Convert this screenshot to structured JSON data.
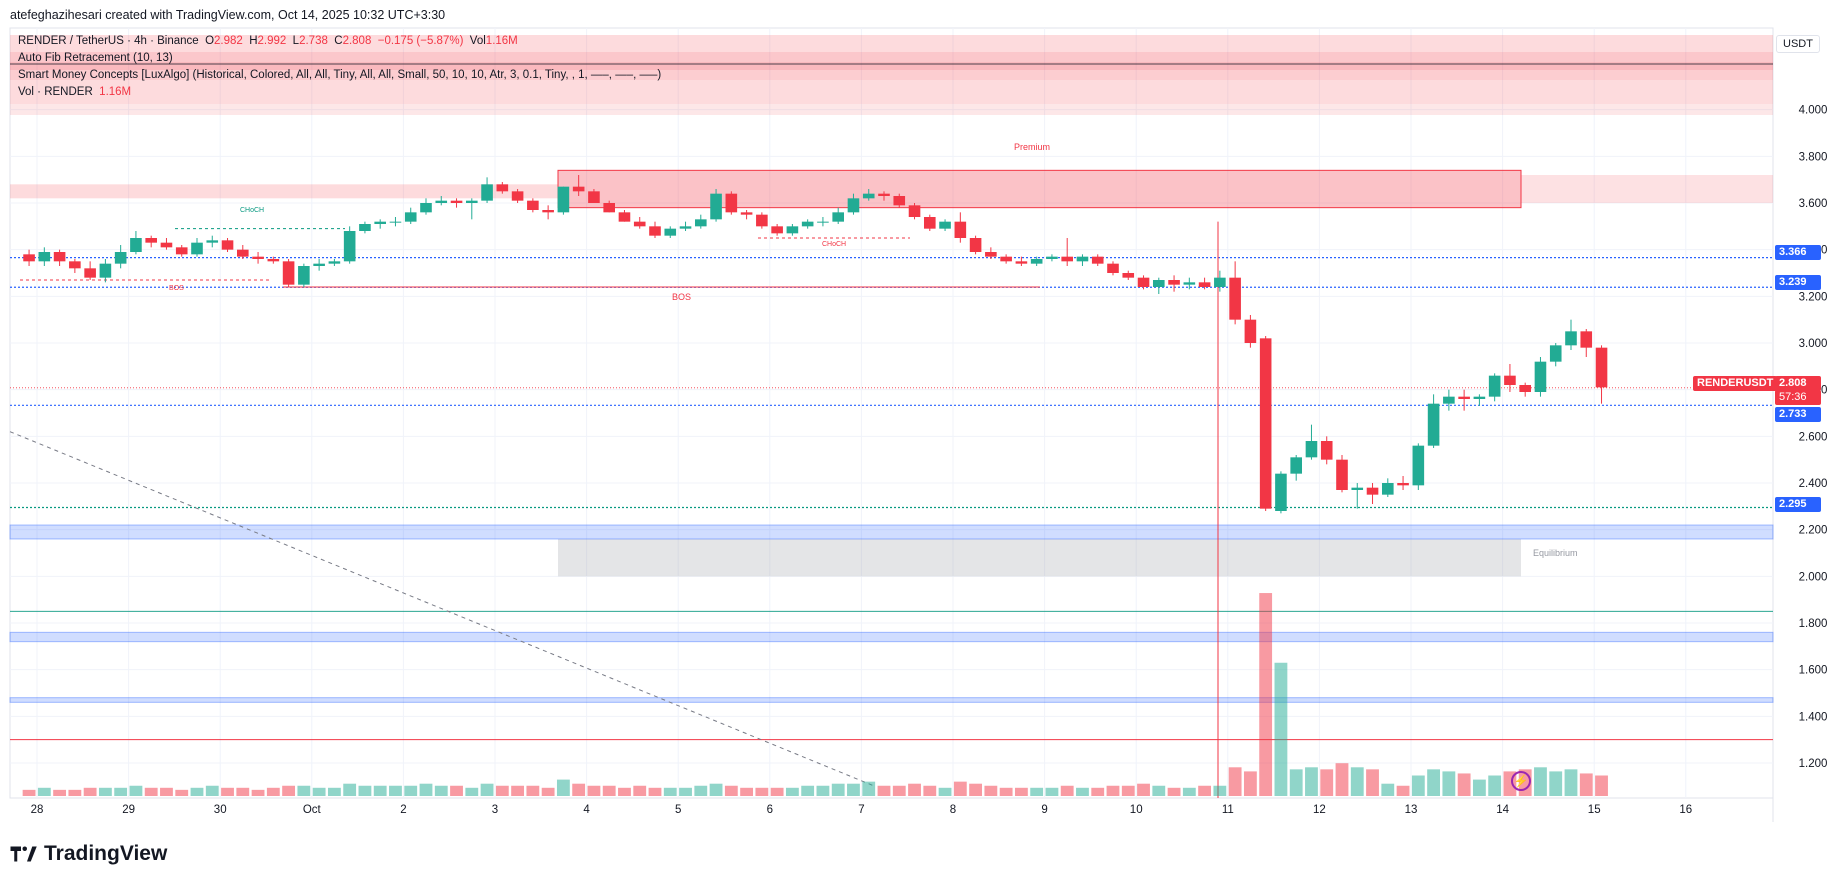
{
  "header": {
    "caption": "atefeghazihesari created with TradingView.com, Oct 14, 2025 10:32 UTC+3:30"
  },
  "legend": {
    "symbol_line": "RENDER / TetherUS · 4h · Binance",
    "o_label": "O",
    "o_value": "2.982",
    "h_label": "H",
    "h_value": "2.992",
    "l_label": "L",
    "l_value": "2.738",
    "c_label": "C",
    "c_value": "2.808",
    "change": "−0.175 (−5.87%)",
    "vol_label": "Vol",
    "vol_value": "1.16M",
    "fib": "Auto Fib Retracement (10, 13)",
    "smc": "Smart Money Concepts [LuxAlgo] (Historical, Colored, All, All, Tiny, All, All, Small, 50, 10, 10, Atr, 3, 0.1, Tiny, , 1, —–, —–, —–)",
    "vol_line_label": "Vol · RENDER",
    "vol_line_value": "1.16M"
  },
  "currency": "USDT",
  "price_tags": {
    "symbol": "RENDERUSDT",
    "last": "2.808",
    "countdown": "57:36",
    "l1": "3.366",
    "l2": "3.239",
    "l3": "2.733",
    "l4": "2.295"
  },
  "zones": {
    "premium": "Premium",
    "equilibrium": "Equilibrium",
    "bos1": "BOS",
    "bos2": "BOS",
    "choch1": "CHoCH",
    "choch2": "CHoCH"
  },
  "brand": "TradingView",
  "colors": {
    "up": "#22ab94",
    "down": "#f23645",
    "blue": "#2962ff",
    "green": "#089981"
  },
  "chart_data": {
    "type": "candlestick",
    "title": "RENDER / TetherUS · 4h · Binance",
    "ylim": [
      1.05,
      4.35
    ],
    "y_ticks": [
      "4.000",
      "3.800",
      "3.600",
      "3.400",
      "3.200",
      "3.000",
      "2.800",
      "2.600",
      "2.400",
      "2.200",
      "2.000",
      "1.800",
      "1.600",
      "1.400",
      "1.200"
    ],
    "y_tick_values": [
      4.0,
      3.8,
      3.6,
      3.4,
      3.2,
      3.0,
      2.8,
      2.6,
      2.4,
      2.2,
      2.0,
      1.8,
      1.6,
      1.4,
      1.2
    ],
    "x_ticks": [
      "28",
      "29",
      "30",
      "Oct",
      "2",
      "3",
      "4",
      "5",
      "6",
      "7",
      "8",
      "9",
      "10",
      "11",
      "12",
      "13",
      "14",
      "15",
      "16"
    ],
    "x_tick_days": [
      0,
      1,
      2,
      3,
      4,
      5,
      6,
      7,
      8,
      9,
      10,
      11,
      12,
      13,
      14,
      15,
      16,
      17,
      18
    ],
    "candles_per_day": 6,
    "candles": [
      [
        3.38,
        3.4,
        3.33,
        3.35
      ],
      [
        3.35,
        3.41,
        3.33,
        3.39
      ],
      [
        3.39,
        3.4,
        3.33,
        3.35
      ],
      [
        3.35,
        3.36,
        3.3,
        3.32
      ],
      [
        3.32,
        3.35,
        3.27,
        3.28
      ],
      [
        3.28,
        3.36,
        3.26,
        3.34
      ],
      [
        3.34,
        3.42,
        3.32,
        3.39
      ],
      [
        3.39,
        3.48,
        3.38,
        3.45
      ],
      [
        3.45,
        3.46,
        3.41,
        3.43
      ],
      [
        3.43,
        3.45,
        3.4,
        3.41
      ],
      [
        3.41,
        3.42,
        3.37,
        3.38
      ],
      [
        3.38,
        3.45,
        3.37,
        3.43
      ],
      [
        3.43,
        3.46,
        3.41,
        3.44
      ],
      [
        3.44,
        3.45,
        3.39,
        3.4
      ],
      [
        3.4,
        3.42,
        3.36,
        3.37
      ],
      [
        3.37,
        3.39,
        3.34,
        3.36
      ],
      [
        3.36,
        3.37,
        3.34,
        3.35
      ],
      [
        3.35,
        3.36,
        3.24,
        3.25
      ],
      [
        3.25,
        3.34,
        3.24,
        3.33
      ],
      [
        3.33,
        3.36,
        3.31,
        3.34
      ],
      [
        3.34,
        3.36,
        3.33,
        3.35
      ],
      [
        3.35,
        3.5,
        3.34,
        3.48
      ],
      [
        3.48,
        3.52,
        3.47,
        3.51
      ],
      [
        3.51,
        3.53,
        3.49,
        3.52
      ],
      [
        3.52,
        3.54,
        3.5,
        3.52
      ],
      [
        3.52,
        3.58,
        3.51,
        3.56
      ],
      [
        3.56,
        3.62,
        3.55,
        3.6
      ],
      [
        3.6,
        3.63,
        3.59,
        3.61
      ],
      [
        3.61,
        3.62,
        3.58,
        3.6
      ],
      [
        3.6,
        3.62,
        3.53,
        3.61
      ],
      [
        3.61,
        3.71,
        3.6,
        3.68
      ],
      [
        3.68,
        3.69,
        3.64,
        3.65
      ],
      [
        3.65,
        3.66,
        3.6,
        3.61
      ],
      [
        3.61,
        3.62,
        3.56,
        3.57
      ],
      [
        3.57,
        3.59,
        3.53,
        3.56
      ],
      [
        3.56,
        3.67,
        3.55,
        3.67
      ],
      [
        3.67,
        3.72,
        3.63,
        3.65
      ],
      [
        3.65,
        3.66,
        3.6,
        3.6
      ],
      [
        3.6,
        3.61,
        3.56,
        3.56
      ],
      [
        3.56,
        3.57,
        3.52,
        3.52
      ],
      [
        3.52,
        3.54,
        3.49,
        3.5
      ],
      [
        3.5,
        3.52,
        3.45,
        3.46
      ],
      [
        3.46,
        3.5,
        3.45,
        3.49
      ],
      [
        3.49,
        3.52,
        3.48,
        3.5
      ],
      [
        3.5,
        3.55,
        3.49,
        3.53
      ],
      [
        3.53,
        3.66,
        3.52,
        3.64
      ],
      [
        3.64,
        3.65,
        3.55,
        3.56
      ],
      [
        3.56,
        3.57,
        3.53,
        3.55
      ],
      [
        3.55,
        3.56,
        3.49,
        3.5
      ],
      [
        3.5,
        3.51,
        3.46,
        3.47
      ],
      [
        3.47,
        3.51,
        3.46,
        3.5
      ],
      [
        3.5,
        3.53,
        3.49,
        3.52
      ],
      [
        3.52,
        3.54,
        3.5,
        3.52
      ],
      [
        3.52,
        3.58,
        3.51,
        3.56
      ],
      [
        3.56,
        3.64,
        3.55,
        3.62
      ],
      [
        3.62,
        3.66,
        3.61,
        3.64
      ],
      [
        3.64,
        3.65,
        3.61,
        3.63
      ],
      [
        3.63,
        3.64,
        3.58,
        3.59
      ],
      [
        3.59,
        3.6,
        3.53,
        3.54
      ],
      [
        3.54,
        3.55,
        3.48,
        3.49
      ],
      [
        3.49,
        3.53,
        3.48,
        3.52
      ],
      [
        3.52,
        3.56,
        3.43,
        3.45
      ],
      [
        3.45,
        3.46,
        3.38,
        3.39
      ],
      [
        3.39,
        3.41,
        3.36,
        3.37
      ],
      [
        3.37,
        3.38,
        3.34,
        3.35
      ],
      [
        3.35,
        3.37,
        3.33,
        3.34
      ],
      [
        3.34,
        3.37,
        3.33,
        3.36
      ],
      [
        3.36,
        3.38,
        3.35,
        3.37
      ],
      [
        3.37,
        3.45,
        3.33,
        3.35
      ],
      [
        3.35,
        3.38,
        3.33,
        3.37
      ],
      [
        3.37,
        3.38,
        3.33,
        3.34
      ],
      [
        3.34,
        3.35,
        3.29,
        3.3
      ],
      [
        3.3,
        3.31,
        3.27,
        3.28
      ],
      [
        3.28,
        3.29,
        3.23,
        3.24
      ],
      [
        3.24,
        3.28,
        3.21,
        3.27
      ],
      [
        3.27,
        3.29,
        3.22,
        3.25
      ],
      [
        3.25,
        3.28,
        3.23,
        3.26
      ],
      [
        3.26,
        3.28,
        3.23,
        3.24
      ],
      [
        3.24,
        3.31,
        3.22,
        3.28
      ],
      [
        3.28,
        3.35,
        3.08,
        3.1
      ],
      [
        3.1,
        3.12,
        2.98,
        3.0
      ],
      [
        3.02,
        3.03,
        2.28,
        2.29
      ],
      [
        2.28,
        2.45,
        2.27,
        2.44
      ],
      [
        2.44,
        2.52,
        2.41,
        2.51
      ],
      [
        2.51,
        2.65,
        2.5,
        2.58
      ],
      [
        2.58,
        2.6,
        2.48,
        2.5
      ],
      [
        2.5,
        2.52,
        2.36,
        2.37
      ],
      [
        2.37,
        2.4,
        2.29,
        2.38
      ],
      [
        2.38,
        2.4,
        2.31,
        2.35
      ],
      [
        2.35,
        2.42,
        2.34,
        2.4
      ],
      [
        2.4,
        2.43,
        2.37,
        2.39
      ],
      [
        2.39,
        2.57,
        2.37,
        2.56
      ],
      [
        2.56,
        2.78,
        2.55,
        2.74
      ],
      [
        2.74,
        2.8,
        2.71,
        2.77
      ],
      [
        2.77,
        2.8,
        2.71,
        2.76
      ],
      [
        2.76,
        2.78,
        2.73,
        2.77
      ],
      [
        2.77,
        2.87,
        2.75,
        2.86
      ],
      [
        2.86,
        2.91,
        2.79,
        2.82
      ],
      [
        2.82,
        2.83,
        2.77,
        2.79
      ],
      [
        2.79,
        2.94,
        2.77,
        2.92
      ],
      [
        2.92,
        3.0,
        2.9,
        2.99
      ],
      [
        2.99,
        3.1,
        2.97,
        3.05
      ],
      [
        3.05,
        3.06,
        2.94,
        2.98
      ],
      [
        2.98,
        2.99,
        2.74,
        2.81
      ]
    ],
    "volume_scale_max": 1.0,
    "volumes": [
      0.03,
      0.04,
      0.03,
      0.03,
      0.04,
      0.04,
      0.04,
      0.05,
      0.04,
      0.04,
      0.03,
      0.04,
      0.05,
      0.04,
      0.04,
      0.03,
      0.04,
      0.05,
      0.05,
      0.04,
      0.04,
      0.06,
      0.05,
      0.05,
      0.05,
      0.05,
      0.06,
      0.05,
      0.05,
      0.04,
      0.06,
      0.05,
      0.05,
      0.05,
      0.04,
      0.08,
      0.06,
      0.05,
      0.05,
      0.04,
      0.05,
      0.04,
      0.04,
      0.04,
      0.05,
      0.06,
      0.05,
      0.04,
      0.04,
      0.04,
      0.04,
      0.05,
      0.05,
      0.06,
      0.06,
      0.07,
      0.05,
      0.05,
      0.06,
      0.05,
      0.04,
      0.07,
      0.06,
      0.05,
      0.04,
      0.04,
      0.04,
      0.04,
      0.05,
      0.04,
      0.04,
      0.05,
      0.05,
      0.06,
      0.05,
      0.04,
      0.04,
      0.05,
      0.05,
      0.14,
      0.12,
      0.99,
      0.65,
      0.13,
      0.14,
      0.13,
      0.16,
      0.14,
      0.13,
      0.06,
      0.05,
      0.1,
      0.13,
      0.12,
      0.11,
      0.08,
      0.1,
      0.12,
      0.13,
      0.14,
      0.12,
      0.13,
      0.11,
      0.1
    ],
    "dashed_levels": [
      3.366,
      3.239,
      2.733,
      2.295
    ],
    "premium_zone": [
      3.58,
      3.74
    ],
    "equilibrium_zone": [
      2.0,
      2.16
    ],
    "blue_bands": [
      [
        2.16,
        2.22
      ],
      [
        1.72,
        1.76
      ],
      [
        1.46,
        1.48
      ]
    ],
    "red_level": 1.3,
    "green_level": 1.85
  }
}
